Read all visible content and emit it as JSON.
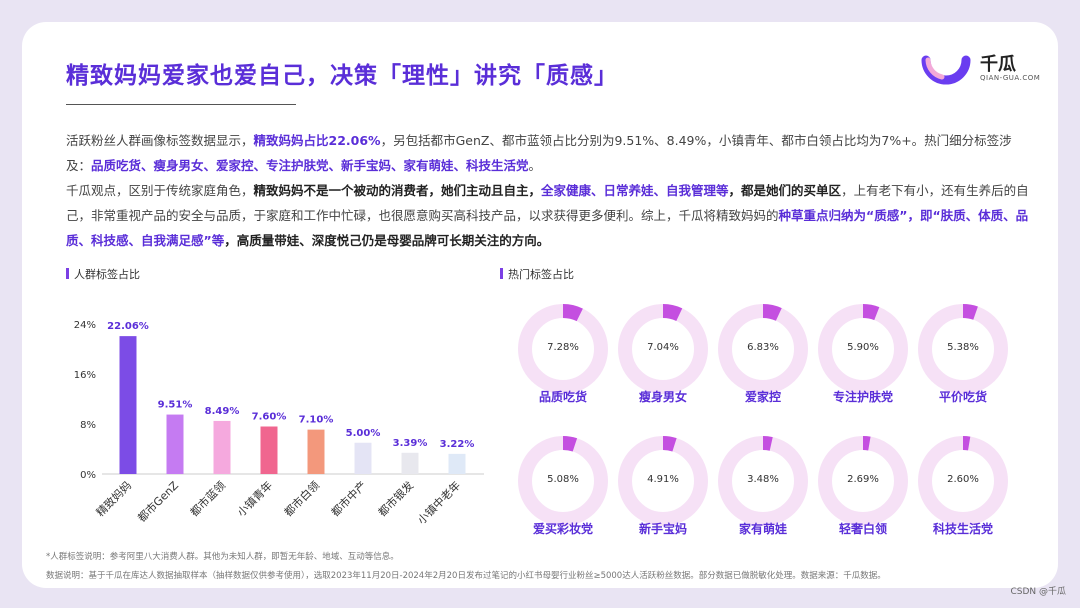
{
  "title": "精致妈妈爱家也爱自己，决策「理性」讲究「质感」",
  "brand": {
    "name": "千瓜",
    "domain": "QIAN-GUA.COM"
  },
  "para1": {
    "t1": "活跃粉丝人群画像标签数据显示，",
    "h1": "精致妈妈占比22.06%",
    "t2": "，另包括都市GenZ、都市蓝领占比分别为9.51%、8.49%，小镇青年、都市白领占比均为7%+。热门细分标签涉及：",
    "h2": "品质吃货、瘦身男女、爱家控、专注护肤党、新手宝妈、家有萌娃、科技生活党",
    "t3": "。"
  },
  "para2": {
    "t1": "千瓜观点，区别于传统家庭角色，",
    "b1": "精致妈妈不是一个被动的消费者，她们主动且自主，",
    "h1": "全家健康、日常养娃、自我管理等",
    "b2": "，都是她们的买单区",
    "t2": "，上有老下有小，还有生养后的自己，非常重视产品的安全与品质，于家庭和工作中忙碌，也很愿意购买高科技产品，以求获得更多便利。综上，千瓜将精致妈妈的",
    "h2": "种草重点归纳为“质感”，即“肤质、体质、品质、科技感、自我满足感”等",
    "b3": "，高质量带娃、深度悦己仍是母婴品牌可长期关注的方向。"
  },
  "left_section_title": "人群标签占比",
  "right_section_title": "热门标签占比",
  "chart_data": [
    {
      "type": "bar",
      "title": "人群标签占比",
      "categories": [
        "精致妈妈",
        "都市GenZ",
        "都市蓝领",
        "小镇青年",
        "都市白领",
        "都市中产",
        "都市银发",
        "小镇中老年"
      ],
      "values": [
        22.06,
        9.51,
        8.49,
        7.6,
        7.1,
        5.0,
        3.39,
        3.22
      ],
      "value_labels": [
        "22.06%",
        "9.51%",
        "8.49%",
        "7.60%",
        "7.10%",
        "5.00%",
        "3.39%",
        "3.22%"
      ],
      "colors": [
        "#7c4ce6",
        "#c57bf2",
        "#f5a9de",
        "#f0668f",
        "#f3987c",
        "#e4e4f5",
        "#e8e8ee",
        "#dfe9f7"
      ],
      "yticks": [
        "0%",
        "8%",
        "16%",
        "24%"
      ],
      "ylim": [
        0,
        24
      ],
      "grid": false
    },
    {
      "type": "pie",
      "title": "热门标签占比",
      "items": [
        {
          "label": "品质吃货",
          "value": 7.28,
          "text": "7.28%"
        },
        {
          "label": "瘦身男女",
          "value": 7.04,
          "text": "7.04%"
        },
        {
          "label": "爱家控",
          "value": 6.83,
          "text": "6.83%"
        },
        {
          "label": "专注护肤党",
          "value": 5.9,
          "text": "5.90%"
        },
        {
          "label": "平价吃货",
          "value": 5.38,
          "text": "5.38%"
        },
        {
          "label": "爱买彩妆党",
          "value": 5.08,
          "text": "5.08%"
        },
        {
          "label": "新手宝妈",
          "value": 4.91,
          "text": "4.91%"
        },
        {
          "label": "家有萌娃",
          "value": 3.48,
          "text": "3.48%"
        },
        {
          "label": "轻奢白领",
          "value": 2.69,
          "text": "2.69%"
        },
        {
          "label": "科技生活党",
          "value": 2.6,
          "text": "2.60%"
        }
      ],
      "colors": {
        "ring": "#f6e1f6",
        "fill": "#c44fe0"
      }
    }
  ],
  "notes": {
    "n1": "*人群标签说明：参考阿里八大消费人群。其他为未知人群，即暂无年龄、地域、互动等信息。",
    "n2": "数据说明：基于千瓜在库达人数据抽取样本（抽样数据仅供参考使用），选取2023年11月20日-2024年2月20日发布过笔记的小红书母婴行业粉丝≥5000达人活跃粉丝数据。部分数据已做脱敏化处理。数据来源：千瓜数据。"
  },
  "footer": "CSDN @千瓜"
}
